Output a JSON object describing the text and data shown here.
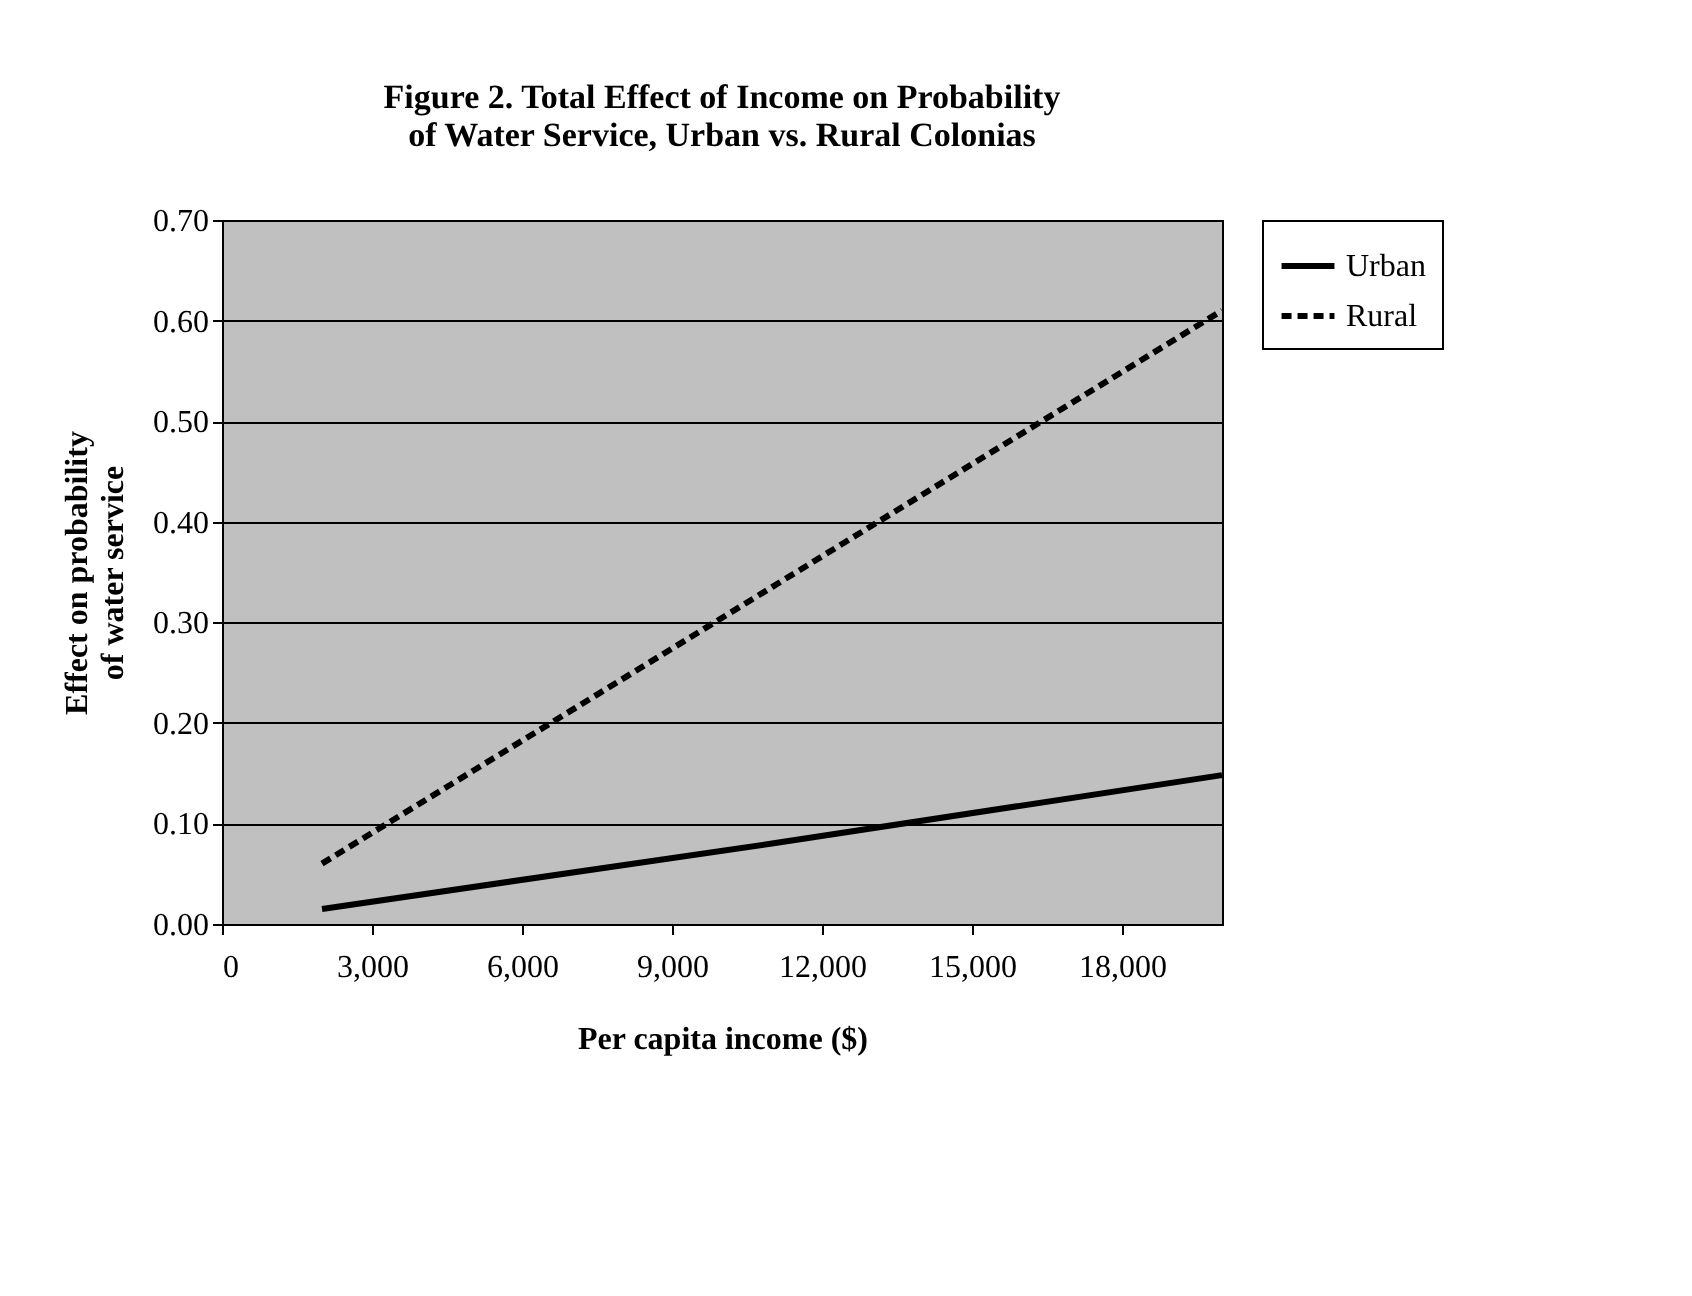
{
  "chart_data": {
    "type": "line",
    "title": "Figure 2.  Total Effect of Income on Probability\nof Water Service, Urban vs. Rural Colonias",
    "xlabel": "Per capita income ($)",
    "ylabel": "Effect on probability\nof water service",
    "x": [
      2000,
      11000,
      20000
    ],
    "series": [
      {
        "name": "Urban",
        "color": "#000000",
        "line_style": "solid",
        "values": [
          0.015,
          0.08,
          0.148
        ]
      },
      {
        "name": "Rural",
        "color": "#000000",
        "line_style": "dashed",
        "values": [
          0.06,
          0.335,
          0.61
        ]
      }
    ],
    "xlim": [
      0,
      20000
    ],
    "xticks": [
      0,
      {
        "value": 3000,
        "label": "3,000"
      },
      {
        "value": 6000,
        "label": "6,000"
      },
      {
        "value": 9000,
        "label": "9,000"
      },
      {
        "value": 12000,
        "label": "12,000"
      },
      {
        "value": 15000,
        "label": "15,000"
      },
      {
        "value": 18000,
        "label": "18,000"
      }
    ],
    "ylim": [
      0,
      0.7
    ],
    "yticks": [
      {
        "value": 0,
        "label": "0.00"
      },
      {
        "value": 0.1,
        "label": "0.10"
      },
      {
        "value": 0.2,
        "label": "0.20"
      },
      {
        "value": 0.3,
        "label": "0.30"
      },
      {
        "value": 0.4,
        "label": "0.40"
      },
      {
        "value": 0.5,
        "label": "0.50"
      },
      {
        "value": 0.6,
        "label": "0.60"
      },
      {
        "value": 0.7,
        "label": "0.70"
      }
    ],
    "grid": "y",
    "legend": "right",
    "marker": "none"
  }
}
